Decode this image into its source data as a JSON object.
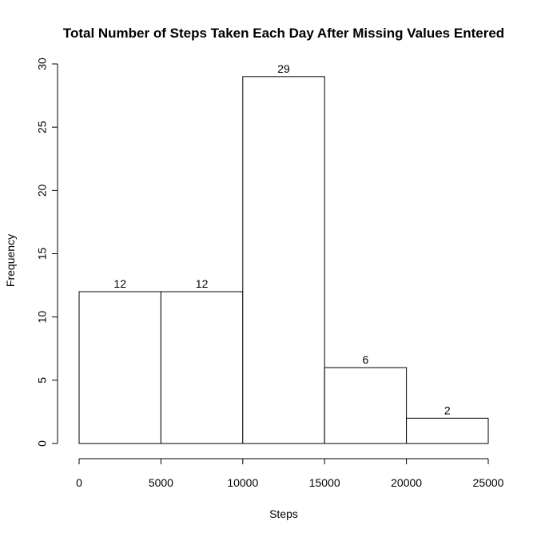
{
  "chart_data": {
    "type": "bar",
    "title": "Total Number of Steps Taken Each Day After Missing Values Entered",
    "xlabel": "Steps",
    "ylabel": "Frequency",
    "bins": [
      {
        "start": 0,
        "end": 5000,
        "count": 12
      },
      {
        "start": 5000,
        "end": 10000,
        "count": 12
      },
      {
        "start": 10000,
        "end": 15000,
        "count": 29
      },
      {
        "start": 15000,
        "end": 20000,
        "count": 6
      },
      {
        "start": 20000,
        "end": 25000,
        "count": 2
      }
    ],
    "xlim": [
      0,
      25000
    ],
    "ylim": [
      0,
      30
    ],
    "xticks": [
      0,
      5000,
      10000,
      15000,
      20000,
      25000
    ],
    "yticks": [
      0,
      5,
      10,
      15,
      20,
      25,
      30
    ],
    "grid": false
  }
}
